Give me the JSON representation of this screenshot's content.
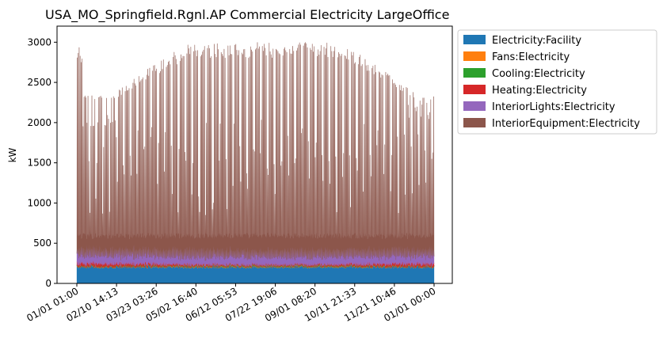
{
  "chart_data": {
    "type": "area",
    "stacked": true,
    "title": "USA_MO_Springfield.Rgnl.AP Commercial Electricity LargeOffice",
    "ylabel": "kW",
    "xlabel": "",
    "ylim": [
      0,
      3200
    ],
    "yticks": [
      0,
      500,
      1000,
      1500,
      2000,
      2500,
      3000
    ],
    "x_tick_labels": [
      "01/01 01:00",
      "02/10 14:13",
      "03/23 03:26",
      "05/02 16:40",
      "06/12 05:53",
      "07/22 19:06",
      "09/01 08:20",
      "10/11 21:33",
      "11/21 10:46",
      "01/01 00:00"
    ],
    "grid": false,
    "legend_position": "outside top-right",
    "series": [
      {
        "name": "Electricity:Facility",
        "color": "#1f77b4",
        "value_range": [
          180,
          270
        ]
      },
      {
        "name": "Fans:Electricity",
        "color": "#ff7f0e",
        "value_range": [
          0,
          15
        ]
      },
      {
        "name": "Cooling:Electricity",
        "color": "#2ca02c",
        "value_range": [
          0,
          20
        ]
      },
      {
        "name": "Heating:Electricity",
        "color": "#d62728",
        "value_range": [
          10,
          60
        ]
      },
      {
        "name": "InteriorLights:Electricity",
        "color": "#9467bd",
        "value_range": [
          60,
          220
        ]
      },
      {
        "name": "InteriorEquipment:Electricity",
        "color": "#8c564b",
        "value_range": [
          250,
          2700
        ]
      }
    ],
    "stack_envelope_kw": {
      "weekday_peak_range": [
        1950,
        3050
      ],
      "weekend_peak_range": [
        850,
        2100
      ],
      "base": 550
    }
  }
}
